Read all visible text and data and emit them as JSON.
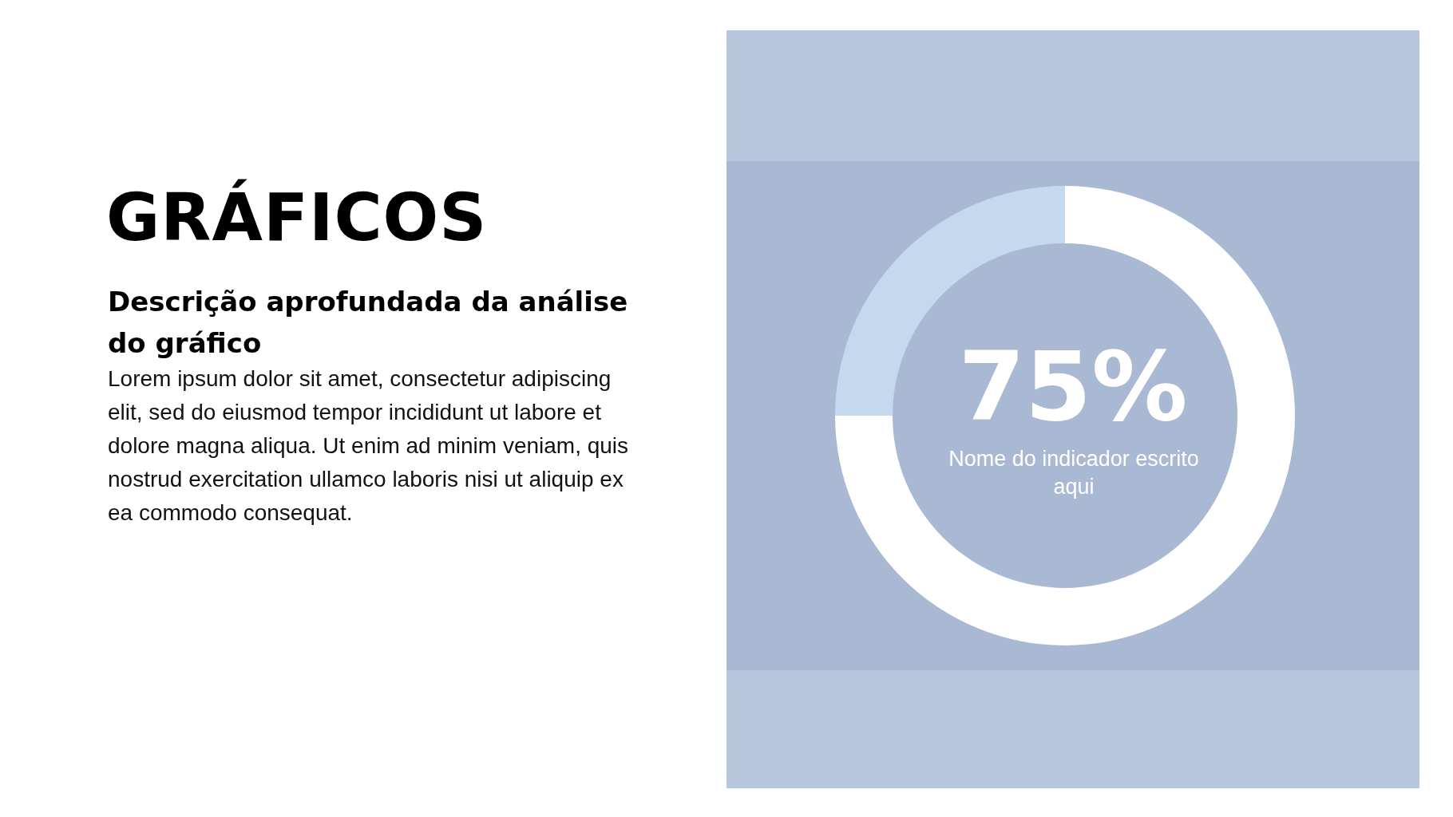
{
  "chart_data": {
    "type": "donut",
    "title": "GRÁFICOS",
    "subtitle": "Descrição aprofundada da análise do gráfico",
    "annotations": [
      "Lorem ipsum dolor sit amet, consectetur adipiscing elit, sed do eiusmod tempor incididunt ut labore et dolore magna aliqua. Ut enim ad minim veniam, quis nostrud exercitation ullamco laboris nisi ut aliquip ex ea commodo consequat.",
      "75%",
      "Nome do indicador escrito aqui"
    ],
    "categories": [
      null,
      null
    ],
    "values": [
      75,
      25
    ],
    "colors": [
      "#ffffff",
      "#c5d9ee"
    ]
  }
}
